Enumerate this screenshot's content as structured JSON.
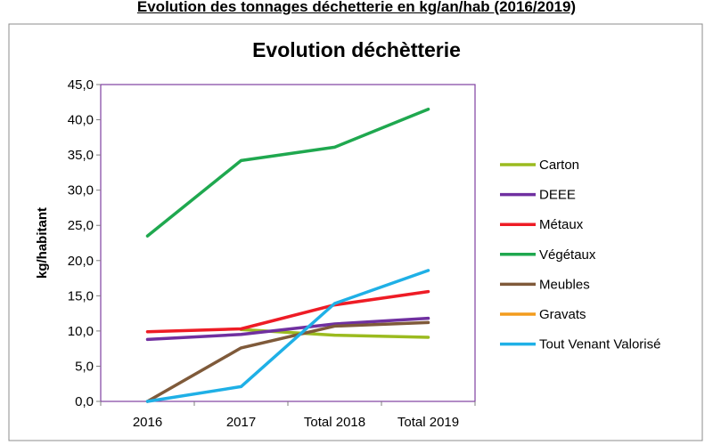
{
  "page": {
    "heading": "Evolution des tonnages déchetterie en kg/an/hab  (2016/2019)"
  },
  "chart_data": {
    "type": "line",
    "title": "Evolution déchètterie",
    "xlabel": "",
    "ylabel": "kg/habitant",
    "categories": [
      "2016",
      "2017",
      "Total 2018",
      "Total 2019"
    ],
    "ylim": [
      0,
      45
    ],
    "yticks": [
      "0,0",
      "5,0",
      "10,0",
      "15,0",
      "20,0",
      "25,0",
      "30,0",
      "35,0",
      "40,0",
      "45,0"
    ],
    "grid": true,
    "legend_position": "right",
    "series": [
      {
        "name": "Carton",
        "color": "#9bbb1f",
        "values": [
          null,
          10.2,
          9.4,
          9.1
        ]
      },
      {
        "name": "DEEE",
        "color": "#7030a0",
        "values": [
          8.8,
          9.5,
          11.0,
          11.8
        ]
      },
      {
        "name": "Métaux",
        "color": "#ee1c25",
        "values": [
          9.9,
          10.3,
          13.7,
          15.6
        ]
      },
      {
        "name": "Végétaux",
        "color": "#1fa84f",
        "values": [
          23.5,
          34.2,
          36.1,
          41.5
        ]
      },
      {
        "name": "Meubles",
        "color": "#7f5a3a",
        "values": [
          0.0,
          7.6,
          10.7,
          11.2
        ]
      },
      {
        "name": "Gravats",
        "color": "#f39c1d",
        "values": [
          null,
          null,
          null,
          null
        ]
      },
      {
        "name": "Tout Venant Valorisé",
        "color": "#1fb0e6",
        "values": [
          0.0,
          2.1,
          13.9,
          18.6
        ]
      }
    ]
  }
}
